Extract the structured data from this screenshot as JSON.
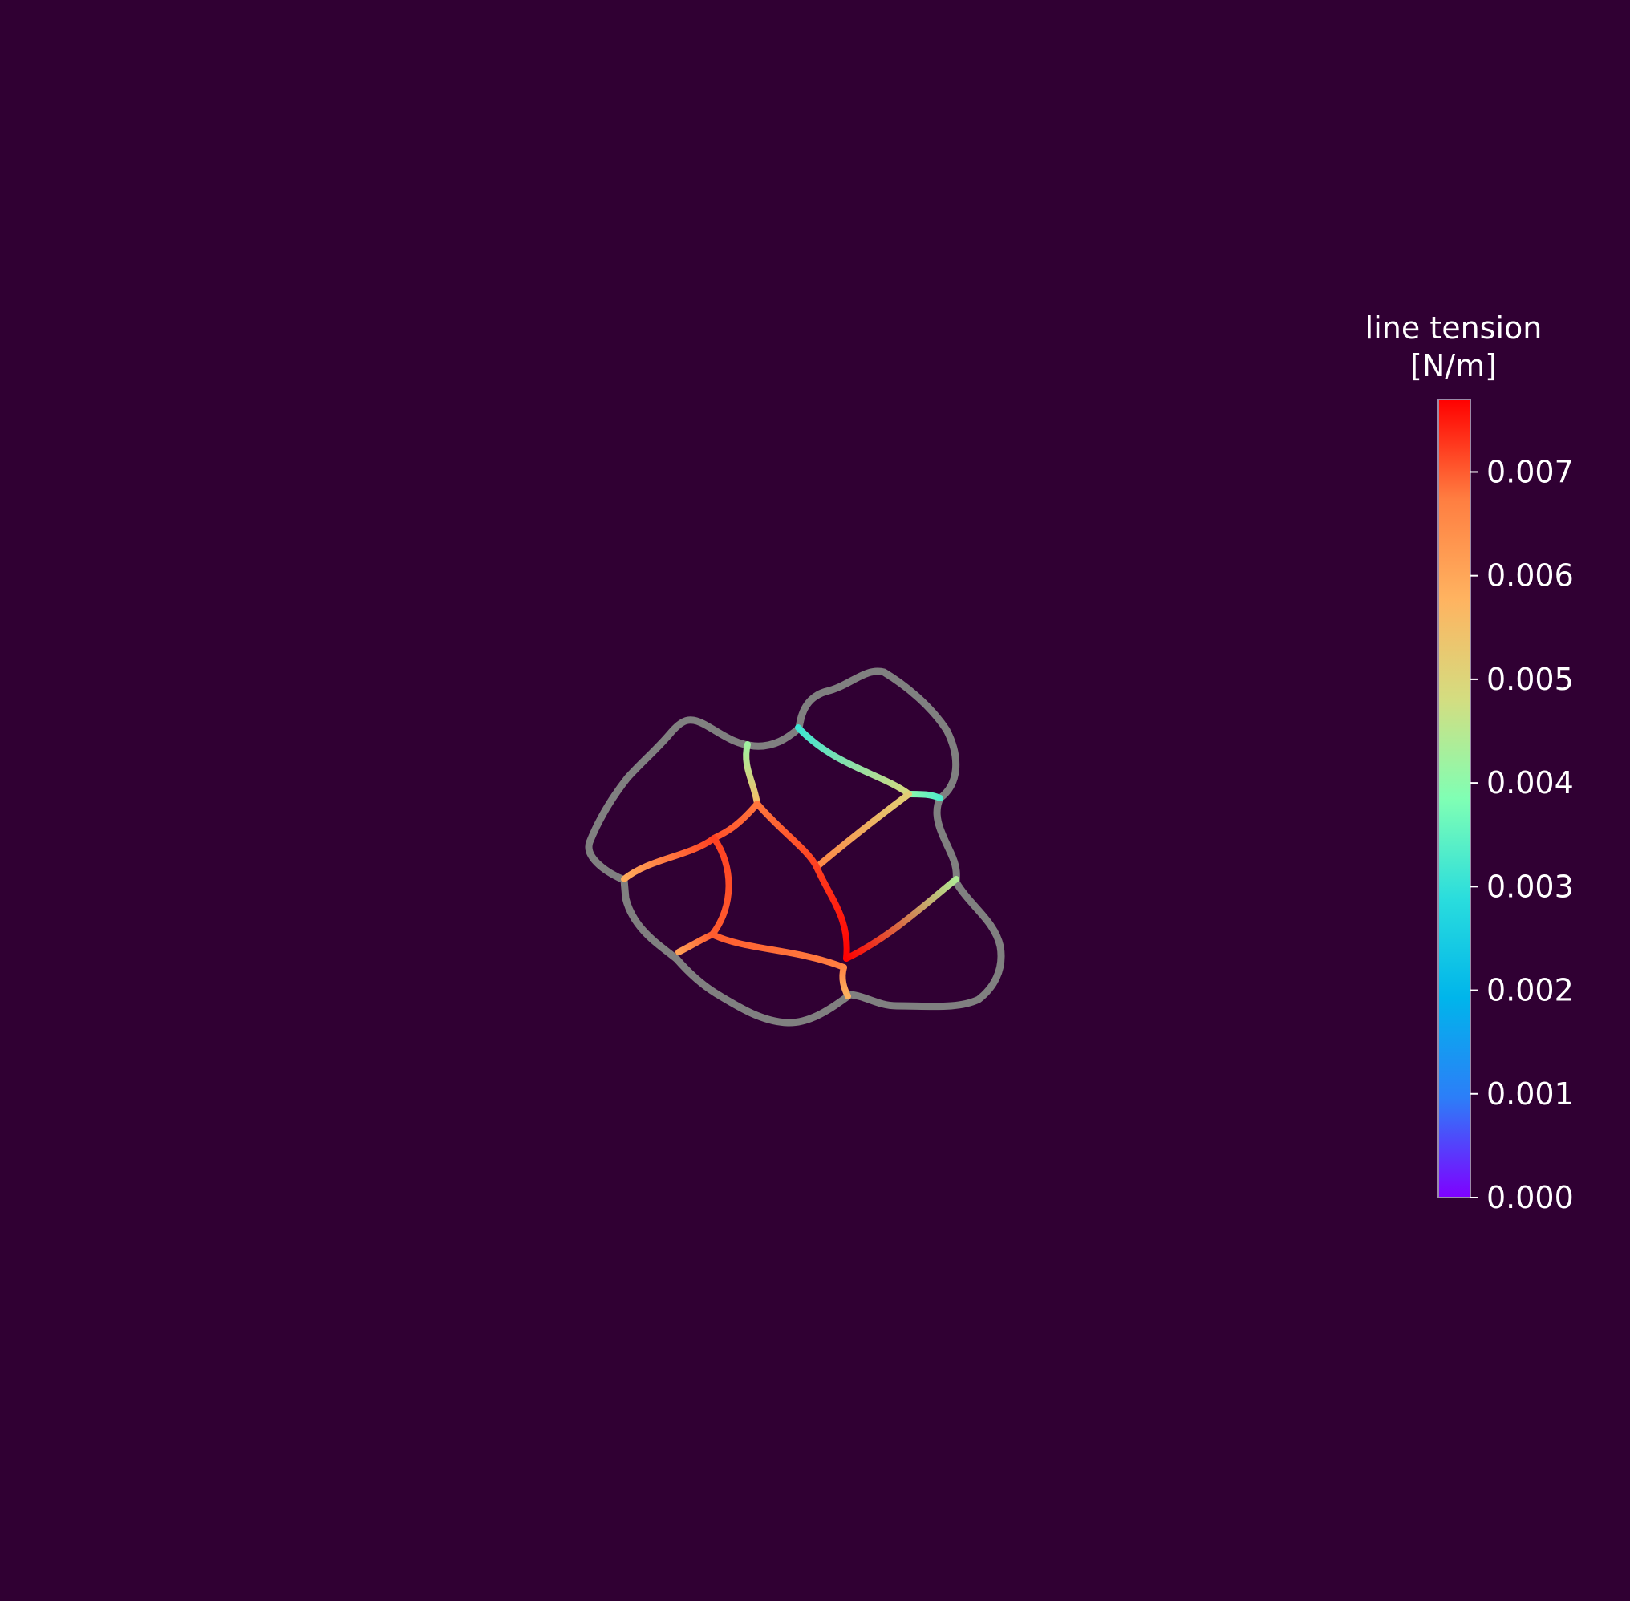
{
  "background": "#300033",
  "chart_data": {
    "type": "network",
    "colorbar": {
      "title_line1": "line tension",
      "title_line2": "[N/m]",
      "min": 0.0,
      "max": 0.0077,
      "ticks": [
        {
          "value": 0.0,
          "label": "0.000"
        },
        {
          "value": 0.001,
          "label": "0.001"
        },
        {
          "value": 0.002,
          "label": "0.002"
        },
        {
          "value": 0.003,
          "label": "0.003"
        },
        {
          "value": 0.004,
          "label": "0.004"
        },
        {
          "value": 0.005,
          "label": "0.005"
        },
        {
          "value": 0.006,
          "label": "0.006"
        },
        {
          "value": 0.007,
          "label": "0.007"
        }
      ],
      "colormap": [
        "#7f00ff",
        "#2c7ef8",
        "#00b5eb",
        "#2adddd",
        "#80ffb4",
        "#d4dd80",
        "#ffb360",
        "#ff7e41",
        "#ff0000"
      ]
    },
    "boundary_color": "#808080",
    "edges": [
      {
        "id": "top-junction-left",
        "tension_start": 0.0042,
        "tension_end": 0.0056
      },
      {
        "id": "top-junction-right",
        "tension_start": 0.0031,
        "tension_end": 0.0049
      },
      {
        "id": "right-short",
        "tension_start": 0.004,
        "tension_end": 0.0033
      },
      {
        "id": "center-diagonal",
        "tension_start": 0.0051,
        "tension_end": 0.0066
      },
      {
        "id": "center-left",
        "tension_start": 0.0068,
        "tension_end": 0.0071
      },
      {
        "id": "left-arc",
        "tension_start": 0.0059,
        "tension_end": 0.0072
      },
      {
        "id": "left-inner-vertical",
        "tension_start": 0.0072,
        "tension_end": 0.007
      },
      {
        "id": "lower-left-short",
        "tension_start": 0.0061,
        "tension_end": 0.007
      },
      {
        "id": "bottom-middle",
        "tension_start": 0.007,
        "tension_end": 0.0067
      },
      {
        "id": "center-to-bottom",
        "tension_start": 0.0068,
        "tension_end": 0.0077
      },
      {
        "id": "right-lower-diagonal",
        "tension_start": 0.0044,
        "tension_end": 0.0077
      },
      {
        "id": "bottom-short",
        "tension_start": 0.0066,
        "tension_end": 0.0058
      }
    ]
  }
}
